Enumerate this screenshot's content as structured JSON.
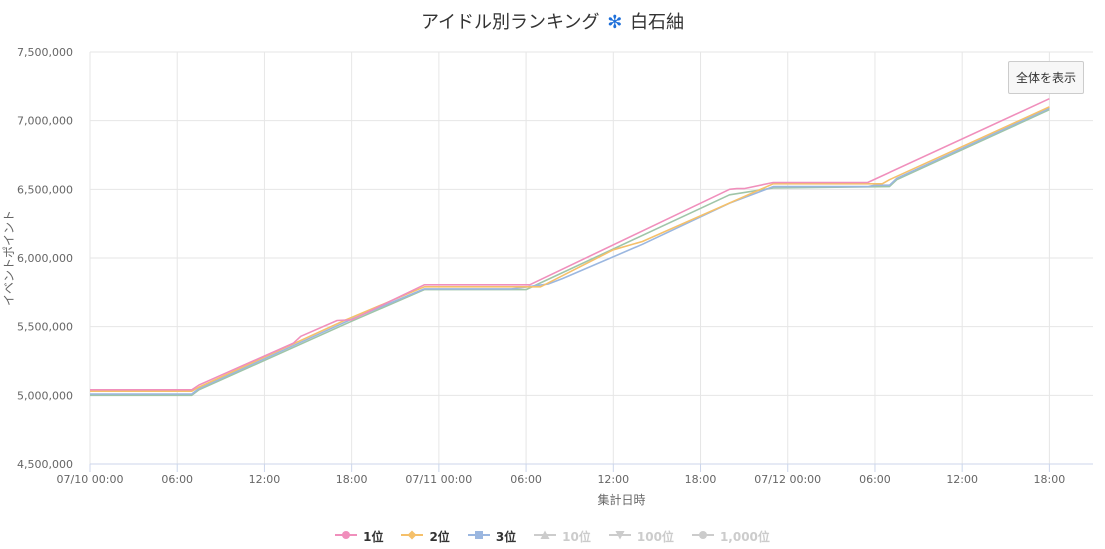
{
  "title": {
    "text": "アイドル別ランキング",
    "icon": "snowflake-icon",
    "icon_glyph": "✻",
    "name": "白石紬"
  },
  "reset_button": "全体を表示",
  "chart_data": {
    "type": "line",
    "xlabel": "集計日時",
    "ylabel": "イベントポイント",
    "x_range": [
      "07/10 00:00",
      "07/12 21:00"
    ],
    "ylim": [
      4500000,
      7500000
    ],
    "y_ticks": [
      "4,500,000",
      "5,000,000",
      "5,500,000",
      "6,000,000",
      "6,500,000",
      "7,000,000",
      "7,500,000"
    ],
    "x_ticks": [
      "07/10 00:00",
      "06:00",
      "12:00",
      "18:00",
      "07/11 00:00",
      "06:00",
      "12:00",
      "18:00",
      "07/12 00:00",
      "06:00",
      "12:00",
      "18:00"
    ],
    "grid": true,
    "legend_position": "bottom",
    "series": [
      {
        "name": "1位",
        "color": "#f08fbc",
        "marker": "circle",
        "visible": true,
        "points": [
          [
            "07/10 00:00",
            5040000
          ],
          [
            "07/10 07:00",
            5040000
          ],
          [
            "07/10 07:30",
            5075000
          ],
          [
            "07/10 14:00",
            5380000
          ],
          [
            "07/10 14:30",
            5430000
          ],
          [
            "07/10 17:00",
            5545000
          ],
          [
            "07/10 18:00",
            5550000
          ],
          [
            "07/10 23:00",
            5805000
          ],
          [
            "07/11 06:15",
            5805000
          ],
          [
            "07/11 20:00",
            6500000
          ],
          [
            "07/11 20:30",
            6505000
          ],
          [
            "07/11 21:00",
            6505000
          ],
          [
            "07/11 23:00",
            6550000
          ],
          [
            "07/12 05:30",
            6550000
          ],
          [
            "07/12 18:00",
            7160000
          ]
        ]
      },
      {
        "name": "2位",
        "color": "#f5c06a",
        "marker": "diamond",
        "visible": true,
        "points": [
          [
            "07/10 00:00",
            5030000
          ],
          [
            "07/10 07:00",
            5030000
          ],
          [
            "07/10 07:30",
            5060000
          ],
          [
            "07/10 17:30",
            5545000
          ],
          [
            "07/10 23:00",
            5790000
          ],
          [
            "07/11 07:00",
            5790000
          ],
          [
            "07/11 12:00",
            6060000
          ],
          [
            "07/11 14:00",
            6120000
          ],
          [
            "07/11 23:00",
            6540000
          ],
          [
            "07/12 06:30",
            6540000
          ],
          [
            "07/12 07:00",
            6570000
          ],
          [
            "07/12 18:00",
            7100000
          ]
        ]
      },
      {
        "name": "3位",
        "color": "#9bb7e0",
        "marker": "square",
        "visible": true,
        "points": [
          [
            "07/10 00:00",
            5010000
          ],
          [
            "07/10 07:00",
            5010000
          ],
          [
            "07/10 07:30",
            5050000
          ],
          [
            "07/10 18:00",
            5555000
          ],
          [
            "07/10 23:00",
            5775000
          ],
          [
            "07/11 05:00",
            5775000
          ],
          [
            "07/11 07:30",
            5810000
          ],
          [
            "07/11 08:30",
            5850000
          ],
          [
            "07/11 14:00",
            6100000
          ],
          [
            "07/11 20:00",
            6400000
          ],
          [
            "07/11 23:00",
            6520000
          ],
          [
            "07/12 05:30",
            6520000
          ],
          [
            "07/12 06:00",
            6530000
          ],
          [
            "07/12 07:00",
            6530000
          ],
          [
            "07/12 07:30",
            6580000
          ],
          [
            "07/12 18:00",
            7090000
          ]
        ]
      },
      {
        "name": "",
        "color": "#9fc5a8",
        "marker": "none",
        "visible": true,
        "points": [
          [
            "07/10 00:00",
            5000000
          ],
          [
            "07/10 07:00",
            5000000
          ],
          [
            "07/10 07:30",
            5040000
          ],
          [
            "07/10 18:00",
            5540000
          ],
          [
            "07/10 23:00",
            5770000
          ],
          [
            "07/11 06:00",
            5770000
          ],
          [
            "07/11 20:00",
            6460000
          ],
          [
            "07/11 23:00",
            6510000
          ],
          [
            "07/12 07:00",
            6520000
          ],
          [
            "07/12 07:30",
            6570000
          ],
          [
            "07/12 18:00",
            7080000
          ]
        ]
      }
    ],
    "legend": [
      {
        "label": "1位",
        "marker": "circle",
        "color": "#f08fbc",
        "visible": true
      },
      {
        "label": "2位",
        "marker": "diamond",
        "color": "#f5c06a",
        "visible": true
      },
      {
        "label": "3位",
        "marker": "square",
        "color": "#9bb7e0",
        "visible": true
      },
      {
        "label": "10位",
        "marker": "triangle",
        "color": "#cccccc",
        "visible": false
      },
      {
        "label": "100位",
        "marker": "triangle-down",
        "color": "#cccccc",
        "visible": false
      },
      {
        "label": "1,000位",
        "marker": "circle",
        "color": "#cccccc",
        "visible": false
      }
    ]
  }
}
